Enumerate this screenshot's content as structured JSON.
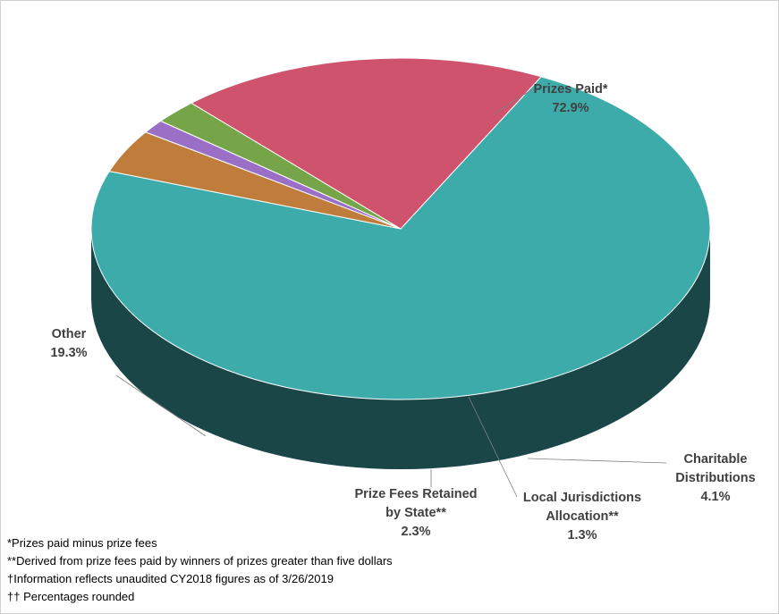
{
  "chart_data": {
    "type": "pie",
    "slices": [
      {
        "label_lines": [
          "Prizes Paid*",
          "72.9%"
        ],
        "name": "Prizes Paid*",
        "value": 72.9,
        "color": "#3eabab",
        "side_color": "#1a4647"
      },
      {
        "label_lines": [
          "Charitable",
          "Distributions",
          "4.1%"
        ],
        "name": "Charitable Distributions",
        "value": 4.1,
        "color": "#c07c3a",
        "side_color": "#553819"
      },
      {
        "label_lines": [
          "Local Jurisdictions",
          "Allocation**",
          "1.3%"
        ],
        "name": "Local Jurisdictions Allocation**",
        "value": 1.3,
        "color": "#9b6fc6",
        "side_color": "#48345e"
      },
      {
        "label_lines": [
          "Prize Fees Retained",
          "by State**",
          "2.3%"
        ],
        "name": "Prize Fees Retained by State**",
        "value": 2.3,
        "color": "#75a548",
        "side_color": "#3a5424"
      },
      {
        "label_lines": [
          "Other",
          "19.3%"
        ],
        "name": "Other",
        "value": 19.3,
        "color": "#cf536d",
        "side_color": "#8a3347"
      }
    ]
  },
  "footnotes": [
    "*Prizes paid minus prize fees",
    "**Derived from  prize fees paid by winners of prizes greater than  five dollars",
    "†Information  reflects unaudited  CY2018 figures as of 3/26/2019",
    "†† Percentages rounded"
  ]
}
